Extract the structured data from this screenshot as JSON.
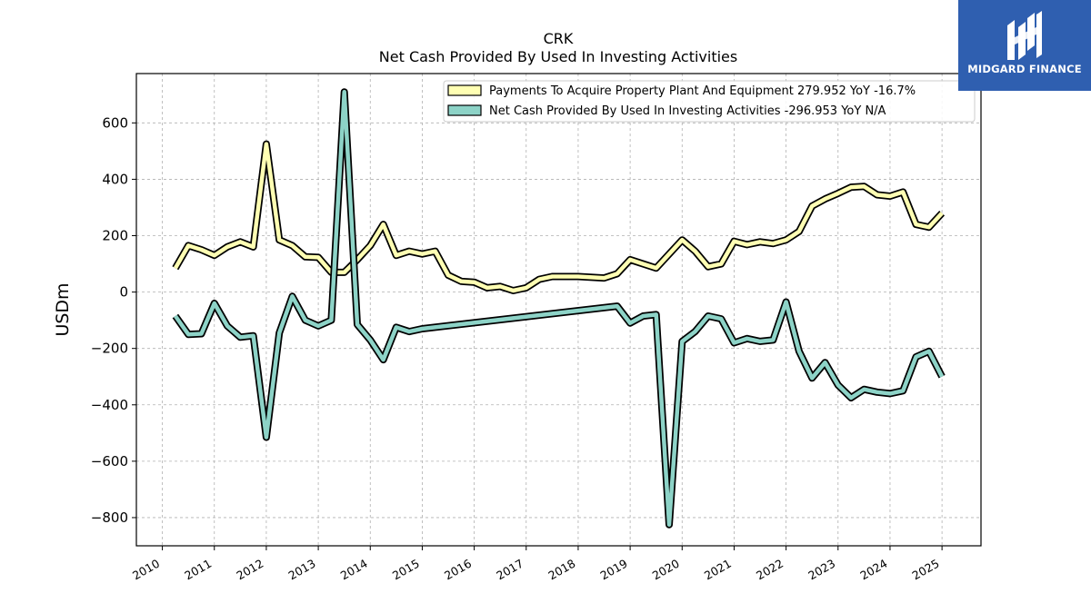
{
  "chart_data": {
    "type": "line",
    "title": "CRK",
    "subtitle": "Net Cash Provided By Used In Investing Activities",
    "ylabel": "USDm",
    "xlabel": "",
    "ylim": [
      -900,
      775
    ],
    "xlim": [
      2009.5,
      2025.75
    ],
    "yticks": [
      -800,
      -600,
      -400,
      -200,
      0,
      200,
      400,
      600
    ],
    "ytick_labels": [
      "−800",
      "−600",
      "−400",
      "−200",
      "0",
      "200",
      "400",
      "600"
    ],
    "xticks": [
      2010,
      2011,
      2012,
      2013,
      2014,
      2015,
      2016,
      2017,
      2018,
      2019,
      2020,
      2021,
      2022,
      2023,
      2024,
      2025
    ],
    "xtick_labels": [
      "2010",
      "2011",
      "2012",
      "2013",
      "2014",
      "2015",
      "2016",
      "2017",
      "2018",
      "2019",
      "2020",
      "2021",
      "2022",
      "2023",
      "2024",
      "2025"
    ],
    "grid": true,
    "legend_position": "top-right",
    "series": [
      {
        "name": "Payments To Acquire Property Plant And Equipment",
        "legend_label": "Payments To Acquire Property Plant And Equipment  279.952 YoY -16.7%",
        "color": "#ffffb3",
        "points": [
          [
            2010.25,
            85
          ],
          [
            2010.5,
            165
          ],
          [
            2010.75,
            150
          ],
          [
            2011.0,
            130
          ],
          [
            2011.25,
            160
          ],
          [
            2011.5,
            178
          ],
          [
            2011.75,
            160
          ],
          [
            2012.0,
            525
          ],
          [
            2012.25,
            185
          ],
          [
            2012.5,
            165
          ],
          [
            2012.75,
            125
          ],
          [
            2013.0,
            123
          ],
          [
            2013.25,
            70
          ],
          [
            2013.5,
            70
          ],
          [
            2013.75,
            115
          ],
          [
            2014.0,
            165
          ],
          [
            2014.25,
            240
          ],
          [
            2014.5,
            130
          ],
          [
            2014.75,
            145
          ],
          [
            2015.0,
            135
          ],
          [
            2015.25,
            145
          ],
          [
            2015.5,
            60
          ],
          [
            2015.75,
            38
          ],
          [
            2016.0,
            35
          ],
          [
            2016.25,
            15
          ],
          [
            2016.5,
            20
          ],
          [
            2016.75,
            5
          ],
          [
            2017.0,
            15
          ],
          [
            2017.25,
            45
          ],
          [
            2017.5,
            55
          ],
          [
            2017.75,
            55
          ],
          [
            2018.0,
            55
          ],
          [
            2018.5,
            50
          ],
          [
            2018.75,
            65
          ],
          [
            2019.0,
            115
          ],
          [
            2019.25,
            100
          ],
          [
            2019.5,
            85
          ],
          [
            2019.75,
            135
          ],
          [
            2020.0,
            185
          ],
          [
            2020.25,
            145
          ],
          [
            2020.5,
            90
          ],
          [
            2020.75,
            100
          ],
          [
            2021.0,
            180
          ],
          [
            2021.25,
            168
          ],
          [
            2021.5,
            178
          ],
          [
            2021.75,
            172
          ],
          [
            2022.0,
            185
          ],
          [
            2022.25,
            215
          ],
          [
            2022.5,
            305
          ],
          [
            2022.75,
            330
          ],
          [
            2023.0,
            350
          ],
          [
            2023.25,
            372
          ],
          [
            2023.5,
            375
          ],
          [
            2023.75,
            345
          ],
          [
            2024.0,
            340
          ],
          [
            2024.25,
            355
          ],
          [
            2024.5,
            240
          ],
          [
            2024.75,
            230
          ],
          [
            2025.0,
            280
          ]
        ]
      },
      {
        "name": "Net Cash Provided By Used In Investing Activities",
        "legend_label": "Net Cash Provided By Used In Investing Activities  -296.953 YoY N/A",
        "color": "#8dd3c7",
        "points": [
          [
            2010.25,
            -85
          ],
          [
            2010.5,
            -150
          ],
          [
            2010.75,
            -148
          ],
          [
            2011.0,
            -40
          ],
          [
            2011.25,
            -120
          ],
          [
            2011.5,
            -160
          ],
          [
            2011.75,
            -155
          ],
          [
            2012.0,
            -515
          ],
          [
            2012.25,
            -145
          ],
          [
            2012.5,
            -15
          ],
          [
            2012.75,
            -100
          ],
          [
            2013.0,
            -120
          ],
          [
            2013.25,
            -100
          ],
          [
            2013.5,
            710
          ],
          [
            2013.75,
            -115
          ],
          [
            2014.0,
            -170
          ],
          [
            2014.25,
            -240
          ],
          [
            2014.5,
            -125
          ],
          [
            2014.75,
            -140
          ],
          [
            2015.0,
            -130
          ],
          [
            2018.75,
            -50
          ],
          [
            2019.0,
            -110
          ],
          [
            2019.25,
            -85
          ],
          [
            2019.5,
            -80
          ],
          [
            2019.75,
            -825
          ],
          [
            2020.0,
            -175
          ],
          [
            2020.25,
            -140
          ],
          [
            2020.5,
            -85
          ],
          [
            2020.75,
            -95
          ],
          [
            2021.0,
            -180
          ],
          [
            2021.25,
            -165
          ],
          [
            2021.5,
            -175
          ],
          [
            2021.75,
            -170
          ],
          [
            2022.0,
            -35
          ],
          [
            2022.25,
            -210
          ],
          [
            2022.5,
            -305
          ],
          [
            2022.75,
            -250
          ],
          [
            2023.0,
            -330
          ],
          [
            2023.25,
            -375
          ],
          [
            2023.5,
            -345
          ],
          [
            2023.75,
            -355
          ],
          [
            2024.0,
            -360
          ],
          [
            2024.25,
            -350
          ],
          [
            2024.5,
            -230
          ],
          [
            2024.75,
            -210
          ],
          [
            2025.0,
            -300
          ]
        ]
      }
    ]
  },
  "logo": {
    "text": "MIDGARD FINANCE",
    "color": "#2f5fb0"
  }
}
